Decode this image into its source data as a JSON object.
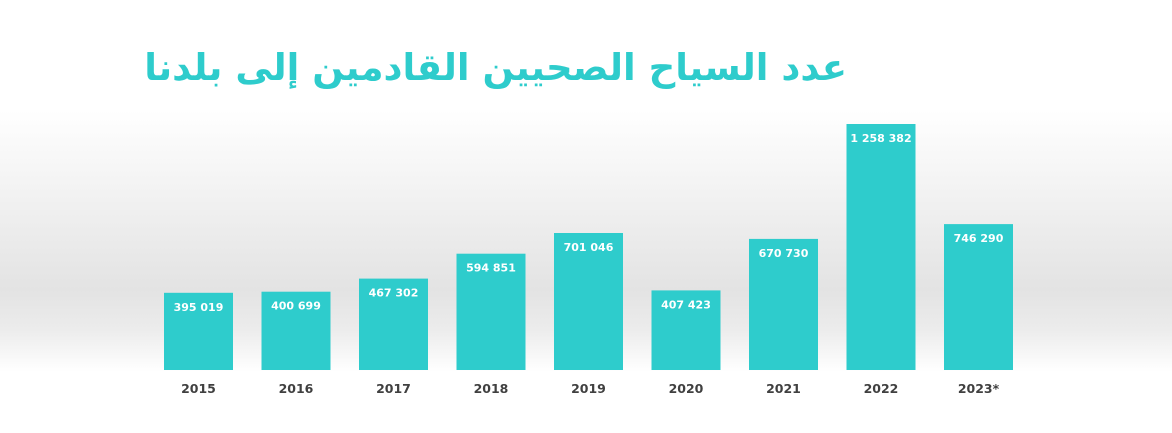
{
  "chart_data": {
    "type": "bar",
    "title": "عدد السياح الصحيين القادمين إلى بلدنا",
    "xlabel": "",
    "ylabel": "",
    "categories": [
      "2015",
      "2016",
      "2017",
      "2018",
      "2019",
      "2020",
      "2021",
      "2022",
      "2023*"
    ],
    "values": [
      395019,
      400699,
      467302,
      594851,
      701046,
      407423,
      670730,
      1258382,
      746290
    ],
    "value_labels": [
      "395 019",
      "400 699",
      "467 302",
      "594 851",
      "701 046",
      "407 423",
      "670 730",
      "1 258 382",
      "746 290"
    ],
    "ylim": [
      0,
      1300000
    ],
    "grid": false,
    "legend": "none",
    "bar_color": "#2ecccc"
  }
}
